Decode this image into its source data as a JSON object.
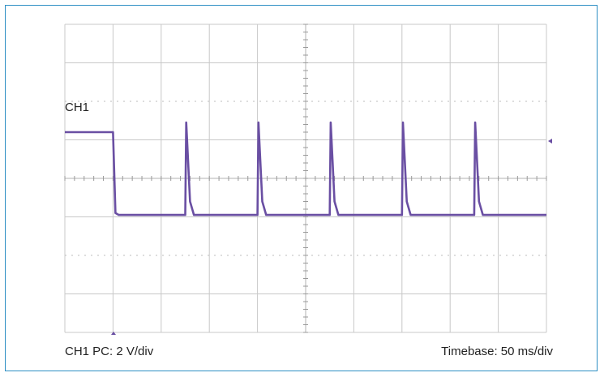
{
  "channel_label": "CH1",
  "footer": {
    "left": "CH1 PC: 2 V/div",
    "right": "Timebase: 50 ms/div"
  },
  "colors": {
    "frame_border": "#2e8fc4",
    "grid": "#c8c8c8",
    "trace": "#6a4fa3"
  },
  "chart_data": {
    "type": "line",
    "title": "",
    "xlabel": "",
    "ylabel": "",
    "x_divisions": 10,
    "y_divisions": 8,
    "x_unit": "div",
    "y_unit": "div",
    "xlim": [
      0,
      10
    ],
    "ylim": [
      -4,
      4
    ],
    "series": [
      {
        "name": "CH1",
        "x": [
          0,
          1.0,
          1.05,
          1.12,
          1.5,
          2.5,
          2.52,
          2.6,
          2.68,
          4.0,
          4.02,
          4.1,
          4.18,
          5.5,
          5.52,
          5.6,
          5.68,
          7.0,
          7.02,
          7.1,
          7.18,
          8.5,
          8.52,
          8.6,
          8.68,
          10.0
        ],
        "y": [
          1.2,
          1.2,
          -0.9,
          -0.95,
          -0.95,
          -0.95,
          1.45,
          -0.6,
          -0.95,
          -0.95,
          1.45,
          -0.6,
          -0.95,
          -0.95,
          1.45,
          -0.6,
          -0.95,
          -0.95,
          1.45,
          -0.6,
          -0.95,
          -0.95,
          1.45,
          -0.6,
          -0.95,
          -0.95
        ]
      }
    ]
  }
}
